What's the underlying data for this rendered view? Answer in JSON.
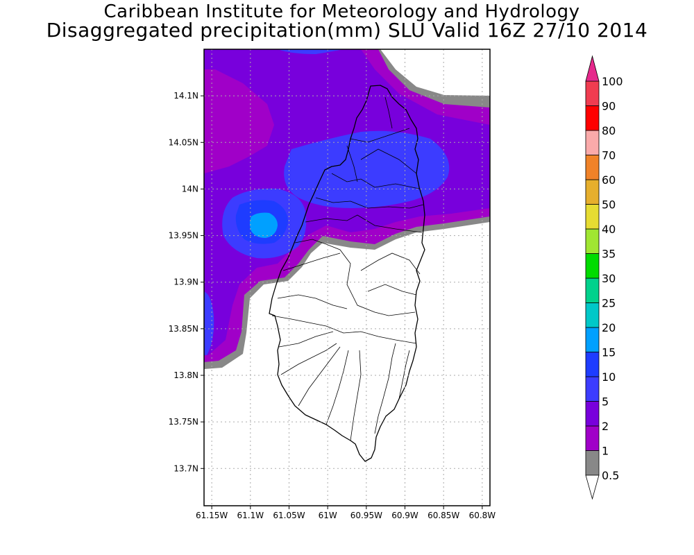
{
  "title_line1": "Caribbean Institute for Meteorology and Hydrology",
  "title_line2": "Disaggregated precipitation(mm) SLU Valid 16Z 27/10 2014",
  "map": {
    "lon_range": [
      -61.16,
      -60.79
    ],
    "lat_range": [
      13.66,
      14.15
    ],
    "lat_ticks": [
      {
        "value": 14.1,
        "label": "14.1N"
      },
      {
        "value": 14.05,
        "label": "14.05N"
      },
      {
        "value": 14.0,
        "label": "14N"
      },
      {
        "value": 13.95,
        "label": "13.95N"
      },
      {
        "value": 13.9,
        "label": "13.9N"
      },
      {
        "value": 13.85,
        "label": "13.85N"
      },
      {
        "value": 13.8,
        "label": "13.8N"
      },
      {
        "value": 13.75,
        "label": "13.75N"
      },
      {
        "value": 13.7,
        "label": "13.7N"
      }
    ],
    "lon_ticks": [
      {
        "value": -61.15,
        "label": "61.15W"
      },
      {
        "value": -61.1,
        "label": "61.1W"
      },
      {
        "value": -61.05,
        "label": "61.05W"
      },
      {
        "value": -61.0,
        "label": "61W"
      },
      {
        "value": -60.95,
        "label": "60.95W"
      },
      {
        "value": -60.9,
        "label": "60.9W"
      },
      {
        "value": -60.85,
        "label": "60.85W"
      },
      {
        "value": -60.8,
        "label": "60.8W"
      }
    ],
    "grid": true,
    "grid_style": "dotted"
  },
  "colorbar": {
    "orientation": "vertical",
    "levels": [
      {
        "label": "0.5",
        "color": "#888888"
      },
      {
        "label": "1",
        "color": "#a000c8"
      },
      {
        "label": "2",
        "color": "#7800dc"
      },
      {
        "label": "5",
        "color": "#3c3cff"
      },
      {
        "label": "10",
        "color": "#1e3cff"
      },
      {
        "label": "15",
        "color": "#00a0ff"
      },
      {
        "label": "20",
        "color": "#00c8c8"
      },
      {
        "label": "25",
        "color": "#00d28c"
      },
      {
        "label": "30",
        "color": "#00dc00"
      },
      {
        "label": "35",
        "color": "#a0e632"
      },
      {
        "label": "40",
        "color": "#e6dc32"
      },
      {
        "label": "50",
        "color": "#e6af2d"
      },
      {
        "label": "60",
        "color": "#f08228"
      },
      {
        "label": "70",
        "color": "#faaaaa"
      },
      {
        "label": "80",
        "color": "#ff0000"
      },
      {
        "label": "90",
        "color": "#f03c50"
      },
      {
        "label": "100",
        "color": "#e6288c"
      }
    ],
    "below_color": "#ffffff",
    "above_color": "#e6288c"
  }
}
